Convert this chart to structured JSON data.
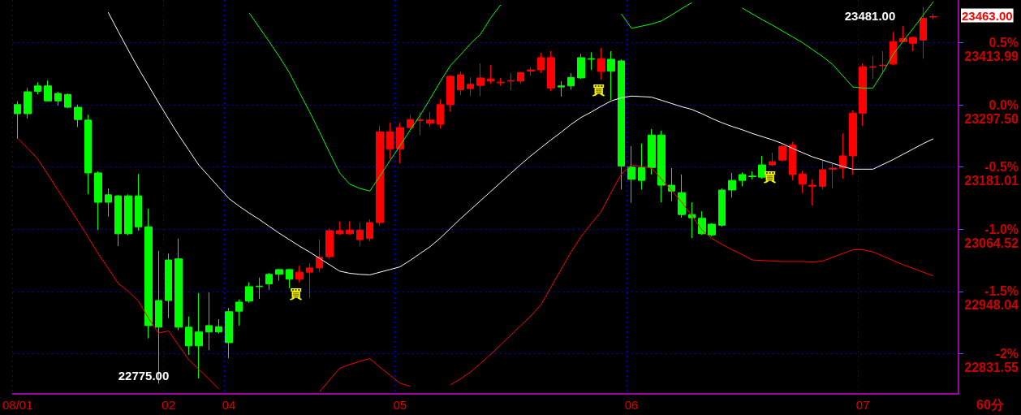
{
  "chart_data": {
    "type": "candlestick",
    "categories": [
      "08/01",
      null,
      null,
      null,
      null,
      null,
      null,
      null,
      null,
      null,
      null,
      null,
      null,
      null,
      null,
      "02",
      null,
      null,
      null,
      null,
      null,
      "04",
      null,
      null,
      null,
      null,
      null,
      null,
      null,
      null,
      null,
      null,
      null,
      null,
      null,
      null,
      null,
      null,
      "05",
      null,
      null,
      null,
      null,
      null,
      null,
      null,
      null,
      null,
      null,
      null,
      null,
      null,
      null,
      null,
      null,
      null,
      null,
      null,
      null,
      null,
      null,
      "06",
      null,
      null,
      null,
      null,
      null,
      null,
      null,
      null,
      null,
      null,
      null,
      null,
      null,
      null,
      null,
      null,
      null,
      null,
      null,
      null,
      null,
      null,
      "07",
      null,
      null,
      null,
      null,
      null,
      null,
      null
    ],
    "ohlc": [
      [
        23298,
        23304,
        23234,
        23281
      ],
      [
        23322,
        23329,
        23272,
        23281
      ],
      [
        23333,
        23340,
        23317,
        23323
      ],
      [
        23333,
        23343,
        23304,
        23305
      ],
      [
        23319,
        23322,
        23296,
        23305
      ],
      [
        23317,
        23319,
        23291,
        23293
      ],
      [
        23293,
        23298,
        23256,
        23270
      ],
      [
        23269,
        23279,
        23130,
        23170
      ],
      [
        23170,
        23173,
        23063,
        23115
      ],
      [
        23129,
        23141,
        23088,
        23115
      ],
      [
        23127,
        23129,
        23033,
        23056
      ],
      [
        23127,
        23130,
        23053,
        23056
      ],
      [
        23127,
        23168,
        23062,
        23069
      ],
      [
        23069,
        23103,
        22860,
        22884
      ],
      [
        22931,
        23024,
        22775,
        22881
      ],
      [
        23007,
        23019,
        22898,
        22931
      ],
      [
        23009,
        23047,
        22875,
        22881
      ],
      [
        22881,
        22901,
        22829,
        22846
      ],
      [
        22872,
        22945,
        22785,
        22846
      ],
      [
        22884,
        22946,
        22838,
        22872
      ],
      [
        22882,
        22896,
        22869,
        22872
      ],
      [
        22910,
        22917,
        22823,
        22852
      ],
      [
        22928,
        22933,
        22884,
        22911
      ],
      [
        22957,
        22965,
        22927,
        22930
      ],
      [
        22958,
        22974,
        22934,
        22957
      ],
      [
        22980,
        22983,
        22951,
        22962
      ],
      [
        22989,
        22990,
        22968,
        22980
      ],
      [
        22989,
        22990,
        22954,
        22971
      ],
      [
        22971,
        22996,
        22965,
        22984
      ],
      [
        22984,
        23001,
        22936,
        22992
      ],
      [
        22992,
        23045,
        22984,
        23012
      ],
      [
        23013,
        23066,
        23009,
        23062
      ],
      [
        23056,
        23079,
        23054,
        23062
      ],
      [
        23056,
        23079,
        23054,
        23063
      ],
      [
        23045,
        23077,
        23033,
        23063
      ],
      [
        23047,
        23083,
        23042,
        23077
      ],
      [
        23077,
        23258,
        23071,
        23247
      ],
      [
        23215,
        23264,
        23196,
        23247
      ],
      [
        23215,
        23264,
        23188,
        23255
      ],
      [
        23255,
        23279,
        23250,
        23270
      ],
      [
        23268,
        23284,
        23241,
        23269
      ],
      [
        23263,
        23284,
        23256,
        23269
      ],
      [
        23261,
        23308,
        23253,
        23298
      ],
      [
        23298,
        23352,
        23285,
        23351
      ],
      [
        23326,
        23360,
        23316,
        23354
      ],
      [
        23328,
        23349,
        23314,
        23336
      ],
      [
        23334,
        23375,
        23314,
        23348
      ],
      [
        23342,
        23372,
        23337,
        23346
      ],
      [
        23339,
        23348,
        23333,
        23340
      ],
      [
        23342,
        23357,
        23325,
        23343
      ],
      [
        23342,
        23360,
        23337,
        23358
      ],
      [
        23361,
        23368,
        23352,
        23363
      ],
      [
        23363,
        23395,
        23357,
        23386
      ],
      [
        23329,
        23398,
        23323,
        23386
      ],
      [
        23333,
        23342,
        23313,
        23331
      ],
      [
        23349,
        23357,
        23326,
        23333
      ],
      [
        23386,
        23393,
        23346,
        23348
      ],
      [
        23384,
        23396,
        23363,
        23383
      ],
      [
        23360,
        23404,
        23345,
        23384
      ],
      [
        23383,
        23398,
        23307,
        23361
      ],
      [
        23380,
        23383,
        23139,
        23183
      ],
      [
        23181,
        23220,
        23114,
        23158
      ],
      [
        23180,
        23225,
        23139,
        23156
      ],
      [
        23241,
        23252,
        23167,
        23180
      ],
      [
        23241,
        23249,
        23115,
        23147
      ],
      [
        23147,
        23179,
        23117,
        23136
      ],
      [
        23133,
        23167,
        23086,
        23092
      ],
      [
        23092,
        23115,
        23048,
        23086
      ],
      [
        23085,
        23098,
        23054,
        23056
      ],
      [
        23074,
        23076,
        23051,
        23054
      ],
      [
        23138,
        23141,
        23069,
        23072
      ],
      [
        23156,
        23170,
        23124,
        23138
      ],
      [
        23167,
        23171,
        23145,
        23156
      ],
      [
        23164,
        23173,
        23158,
        23163
      ],
      [
        23185,
        23202,
        23159,
        23162
      ],
      [
        23185,
        23208,
        23183,
        23191
      ],
      [
        23194,
        23223,
        23191,
        23220
      ],
      [
        23167,
        23228,
        23156,
        23222
      ],
      [
        23149,
        23174,
        23132,
        23168
      ],
      [
        23145,
        23158,
        23109,
        23147
      ],
      [
        23145,
        23194,
        23139,
        23176
      ],
      [
        23177,
        23187,
        23141,
        23179
      ],
      [
        23179,
        23244,
        23159,
        23202
      ],
      [
        23202,
        23287,
        23167,
        23282
      ],
      [
        23282,
        23375,
        23258,
        23369
      ],
      [
        23368,
        23389,
        23346,
        23369
      ],
      [
        23371,
        23398,
        23358,
        23372
      ],
      [
        23374,
        23434,
        23372,
        23416
      ],
      [
        23416,
        23445,
        23416,
        23422
      ],
      [
        23413,
        23425,
        23398,
        23424
      ],
      [
        23419,
        23481,
        23384,
        23460
      ],
      [
        23462,
        23468,
        23457,
        23463
      ]
    ],
    "colors": [
      "#00ff00",
      "#00ff00",
      "#00ff00",
      "#00ff00",
      "#00ff00",
      "#00ff00",
      "#00ff00",
      "#00ff00",
      "#00ff00",
      "#00ff00",
      "#00ff00",
      "#00ff00",
      "#00ff00",
      "#00ff00",
      "#00ff00",
      "#00ff00",
      "#00ff00",
      "#00ff00",
      "#00ff00",
      "#00ff00",
      "#00ff00",
      "#00ff00",
      "#00ff00",
      "#00ff00",
      "#00ff00",
      "#00ff00",
      "#00ff00",
      "#00ff00",
      "#ff0000",
      "#ff0000",
      "#ff0000",
      "#ff0000",
      "#ff0000",
      "#ff0000",
      "#ff0000",
      "#ff0000",
      "#ff0000",
      "#ff0000",
      "#ff0000",
      "#ff0000",
      "#ff0000",
      "#ff0000",
      "#ff0000",
      "#ff0000",
      "#ff0000",
      "#ff0000",
      "#ff0000",
      "#ff0000",
      "#ff0000",
      "#ff0000",
      "#ff0000",
      "#ff0000",
      "#ff0000",
      "#ff0000",
      "#00ff00",
      "#00ff00",
      "#00ff00",
      "#00ff00",
      "#ff0000",
      "#00ff00",
      "#00ff00",
      "#00ff00",
      "#00ff00",
      "#00ff00",
      "#00ff00",
      "#00ff00",
      "#00ff00",
      "#00ff00",
      "#00ff00",
      "#00ff00",
      "#00ff00",
      "#00ff00",
      "#00ff00",
      "#00ff00",
      "#00ff00",
      "#ff0000",
      "#ff0000",
      "#ff0000",
      "#ff0000",
      "#ff0000",
      "#ff0000",
      "#ff0000",
      "#ff0000",
      "#ff0000",
      "#ff0000",
      "#ff0000",
      "#ff0000",
      "#ff0000",
      "#ff0000",
      "#ff0000",
      "#ff0000",
      "#ff0000"
    ],
    "series": [
      {
        "type": "line",
        "color": "#ffffff",
        "values": [
          null,
          null,
          null,
          null,
          null,
          null,
          null,
          null,
          null,
          23471,
          23435,
          23400,
          23366,
          23334,
          23302,
          23271,
          23241,
          23213,
          23185,
          23164,
          23143,
          23122,
          23108,
          23095,
          23083,
          23070,
          23057,
          23045,
          23033,
          23022,
          23010,
          22998,
          22986,
          22982,
          22980,
          22979,
          22984,
          22989,
          22994,
          23006,
          23019,
          23032,
          23048,
          23066,
          23084,
          23101,
          23118,
          23135,
          23152,
          23169,
          23186,
          23202,
          23217,
          23232,
          23246,
          23261,
          23274,
          23284,
          23295,
          23305,
          23311,
          23314,
          23313,
          23312,
          23306,
          23300,
          23294,
          23289,
          23281,
          23272,
          23264,
          23257,
          23251,
          23244,
          23238,
          23232,
          23225,
          23216,
          23208,
          23200,
          23194,
          23188,
          23182,
          23177,
          23177,
          23177,
          23186,
          23195,
          23205,
          23215,
          23225,
          23234
        ]
      },
      {
        "type": "line",
        "color": "#00ff00",
        "values": [
          null,
          null,
          null,
          null,
          null,
          null,
          null,
          null,
          null,
          null,
          null,
          null,
          null,
          null,
          null,
          null,
          null,
          null,
          null,
          null,
          null,
          null,
          null,
          23470,
          23443,
          23416,
          23388,
          23358,
          23321,
          23285,
          23247,
          23208,
          23170,
          23149,
          23141,
          23136,
          23164,
          23193,
          23221,
          23250,
          23278,
          23309,
          23341,
          23371,
          23391,
          23412,
          23430,
          23460,
          23485,
          null,
          null,
          null,
          null,
          null,
          null,
          null,
          null,
          null,
          null,
          null,
          23468,
          23441,
          23445,
          23449,
          23455,
          23466,
          23478,
          23489,
          null,
          null,
          null,
          null,
          23479,
          23468,
          23457,
          23447,
          23436,
          23425,
          23414,
          23401,
          23388,
          23373,
          23352,
          23331,
          23329,
          23329,
          23359,
          23392,
          23417,
          23441,
          23466,
          23491
        ]
      },
      {
        "type": "line",
        "color": "#ff0000",
        "values": [
          23235,
          23216,
          23196,
          23167,
          23138,
          23109,
          23080,
          23050,
          23019,
          22991,
          22963,
          22948,
          22930,
          22898,
          22870,
          22874,
          22847,
          22820,
          22802,
          22784,
          22765,
          null,
          null,
          null,
          null,
          null,
          null,
          null,
          null,
          null,
          22760,
          22782,
          22804,
          22811,
          22817,
          22822,
          22806,
          22791,
          22776,
          22770,
          null,
          null,
          null,
          22773,
          22784,
          22797,
          22813,
          22830,
          22848,
          22866,
          22884,
          22902,
          22923,
          22956,
          22989,
          23022,
          23051,
          23075,
          23098,
          23134,
          23168,
          23185,
          23182,
          23179,
          23158,
          23137,
          23115,
          23090,
          23063,
          23047,
          23036,
          23026,
          23017,
          23007,
          23006,
          23005,
          23004,
          23004,
          23004,
          23003,
          23005,
          23012,
          23019,
          23026,
          23026,
          23022,
          23014,
          23006,
          22998,
          22991,
          22984,
          22977
        ]
      }
    ],
    "xlabel": "60分",
    "ylim": [
      22756,
      23494
    ],
    "yticks": [
      22831.55,
      22948.04,
      23064.52,
      23181.01,
      {
        "value": 23297.5,
        "label": "23297.50"
      },
      23413.99
    ],
    "y2lim": [
      -2.3243,
      0.8434
    ],
    "y2ticks": [
      {
        "value": -2,
        "label": "-2%"
      },
      {
        "value": -1.5,
        "label": "-1.5%"
      },
      {
        "value": -1,
        "label": "-1.0%"
      },
      {
        "value": -0.5,
        "label": "-0.5%"
      },
      {
        "value": 0,
        "label": "0.0%"
      },
      {
        "value": 0.5,
        "label": "0.5%"
      }
    ],
    "grid": true,
    "marker": "none",
    "annotations": [
      "23481.00",
      "22775.00",
      "23463.00",
      "買",
      "買",
      "買"
    ]
  }
}
